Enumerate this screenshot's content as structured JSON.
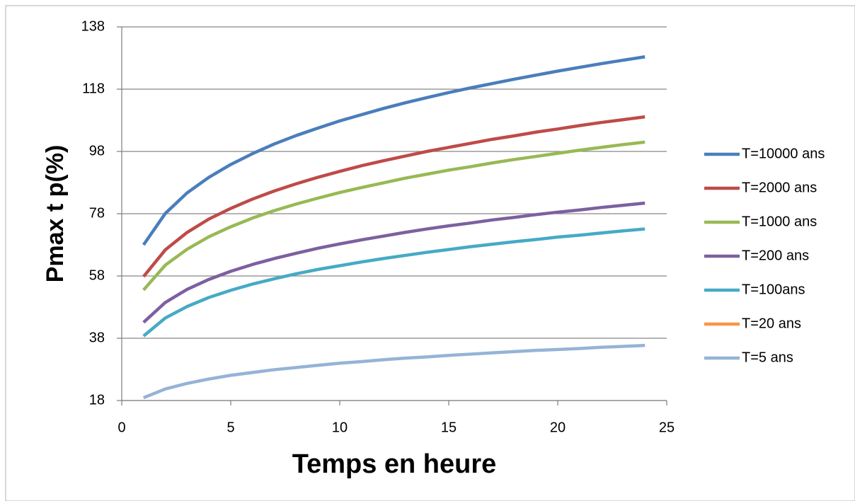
{
  "chart_data": {
    "type": "line",
    "x_label": "Temps en heure",
    "y_label": "Pmax t p(%)",
    "x": [
      1,
      2,
      3,
      4,
      5,
      6,
      7,
      8,
      9,
      10,
      11,
      12,
      13,
      14,
      15,
      16,
      17,
      18,
      19,
      20,
      21,
      22,
      23,
      24
    ],
    "series": [
      {
        "name": "T=10000 ans",
        "color": "#4a7ebb",
        "values": [
          68.0,
          78.1,
          84.7,
          89.7,
          93.8,
          97.3,
          100.4,
          103.1,
          105.5,
          107.8,
          109.8,
          111.8,
          113.6,
          115.3,
          116.9,
          118.4,
          119.8,
          121.2,
          122.5,
          123.8,
          125.0,
          126.2,
          127.3,
          128.4
        ]
      },
      {
        "name": "T=2000 ans",
        "color": "#be4b48",
        "values": [
          57.8,
          66.4,
          72.0,
          76.3,
          79.7,
          82.7,
          85.3,
          87.6,
          89.7,
          91.6,
          93.4,
          95.0,
          96.5,
          98.0,
          99.3,
          100.6,
          101.9,
          103.0,
          104.2,
          105.2,
          106.3,
          107.3,
          108.2,
          109.1
        ]
      },
      {
        "name": "T=1000 ans",
        "color": "#98b954",
        "values": [
          53.5,
          61.5,
          66.6,
          70.6,
          73.8,
          76.6,
          79.0,
          81.1,
          83.0,
          84.8,
          86.4,
          87.9,
          89.4,
          90.7,
          92.0,
          93.1,
          94.3,
          95.4,
          96.4,
          97.4,
          98.4,
          99.3,
          100.2,
          101.0
        ]
      },
      {
        "name": "T=200 ans",
        "color": "#7d60a0",
        "values": [
          43.1,
          49.5,
          53.7,
          56.9,
          59.5,
          61.7,
          63.6,
          65.3,
          66.9,
          68.3,
          69.6,
          70.8,
          72.0,
          73.1,
          74.1,
          75.0,
          76.0,
          76.8,
          77.7,
          78.5,
          79.2,
          80.0,
          80.7,
          81.4
        ]
      },
      {
        "name": "T=100ans",
        "color": "#46aac5",
        "values": [
          38.7,
          44.5,
          48.2,
          51.1,
          53.4,
          55.4,
          57.1,
          58.7,
          60.1,
          61.3,
          62.5,
          63.6,
          64.6,
          65.6,
          66.5,
          67.4,
          68.2,
          69.0,
          69.7,
          70.5,
          71.1,
          71.8,
          72.5,
          73.1
        ]
      },
      {
        "name": "T=20 ans",
        "color": "#f79646",
        "values": [
          null,
          null,
          null,
          null,
          null,
          null,
          null,
          null,
          null,
          null,
          null,
          null,
          null,
          null,
          null,
          null,
          null,
          null,
          null,
          null,
          null,
          null,
          null,
          null
        ]
      },
      {
        "name": "T=5 ans",
        "color": "#95b3d7",
        "values": [
          18.9,
          21.7,
          23.5,
          24.9,
          26.1,
          27.0,
          27.9,
          28.6,
          29.3,
          30.0,
          30.5,
          31.1,
          31.6,
          32.0,
          32.5,
          32.9,
          33.3,
          33.7,
          34.1,
          34.4,
          34.7,
          35.1,
          35.4,
          35.7
        ]
      }
    ],
    "xlim": [
      0,
      25
    ],
    "xticks": [
      0,
      5,
      10,
      15,
      20,
      25
    ],
    "ylim": [
      18,
      138
    ],
    "yticks": [
      18,
      38,
      58,
      78,
      98,
      118,
      138
    ],
    "grid": true,
    "legend": "right"
  }
}
